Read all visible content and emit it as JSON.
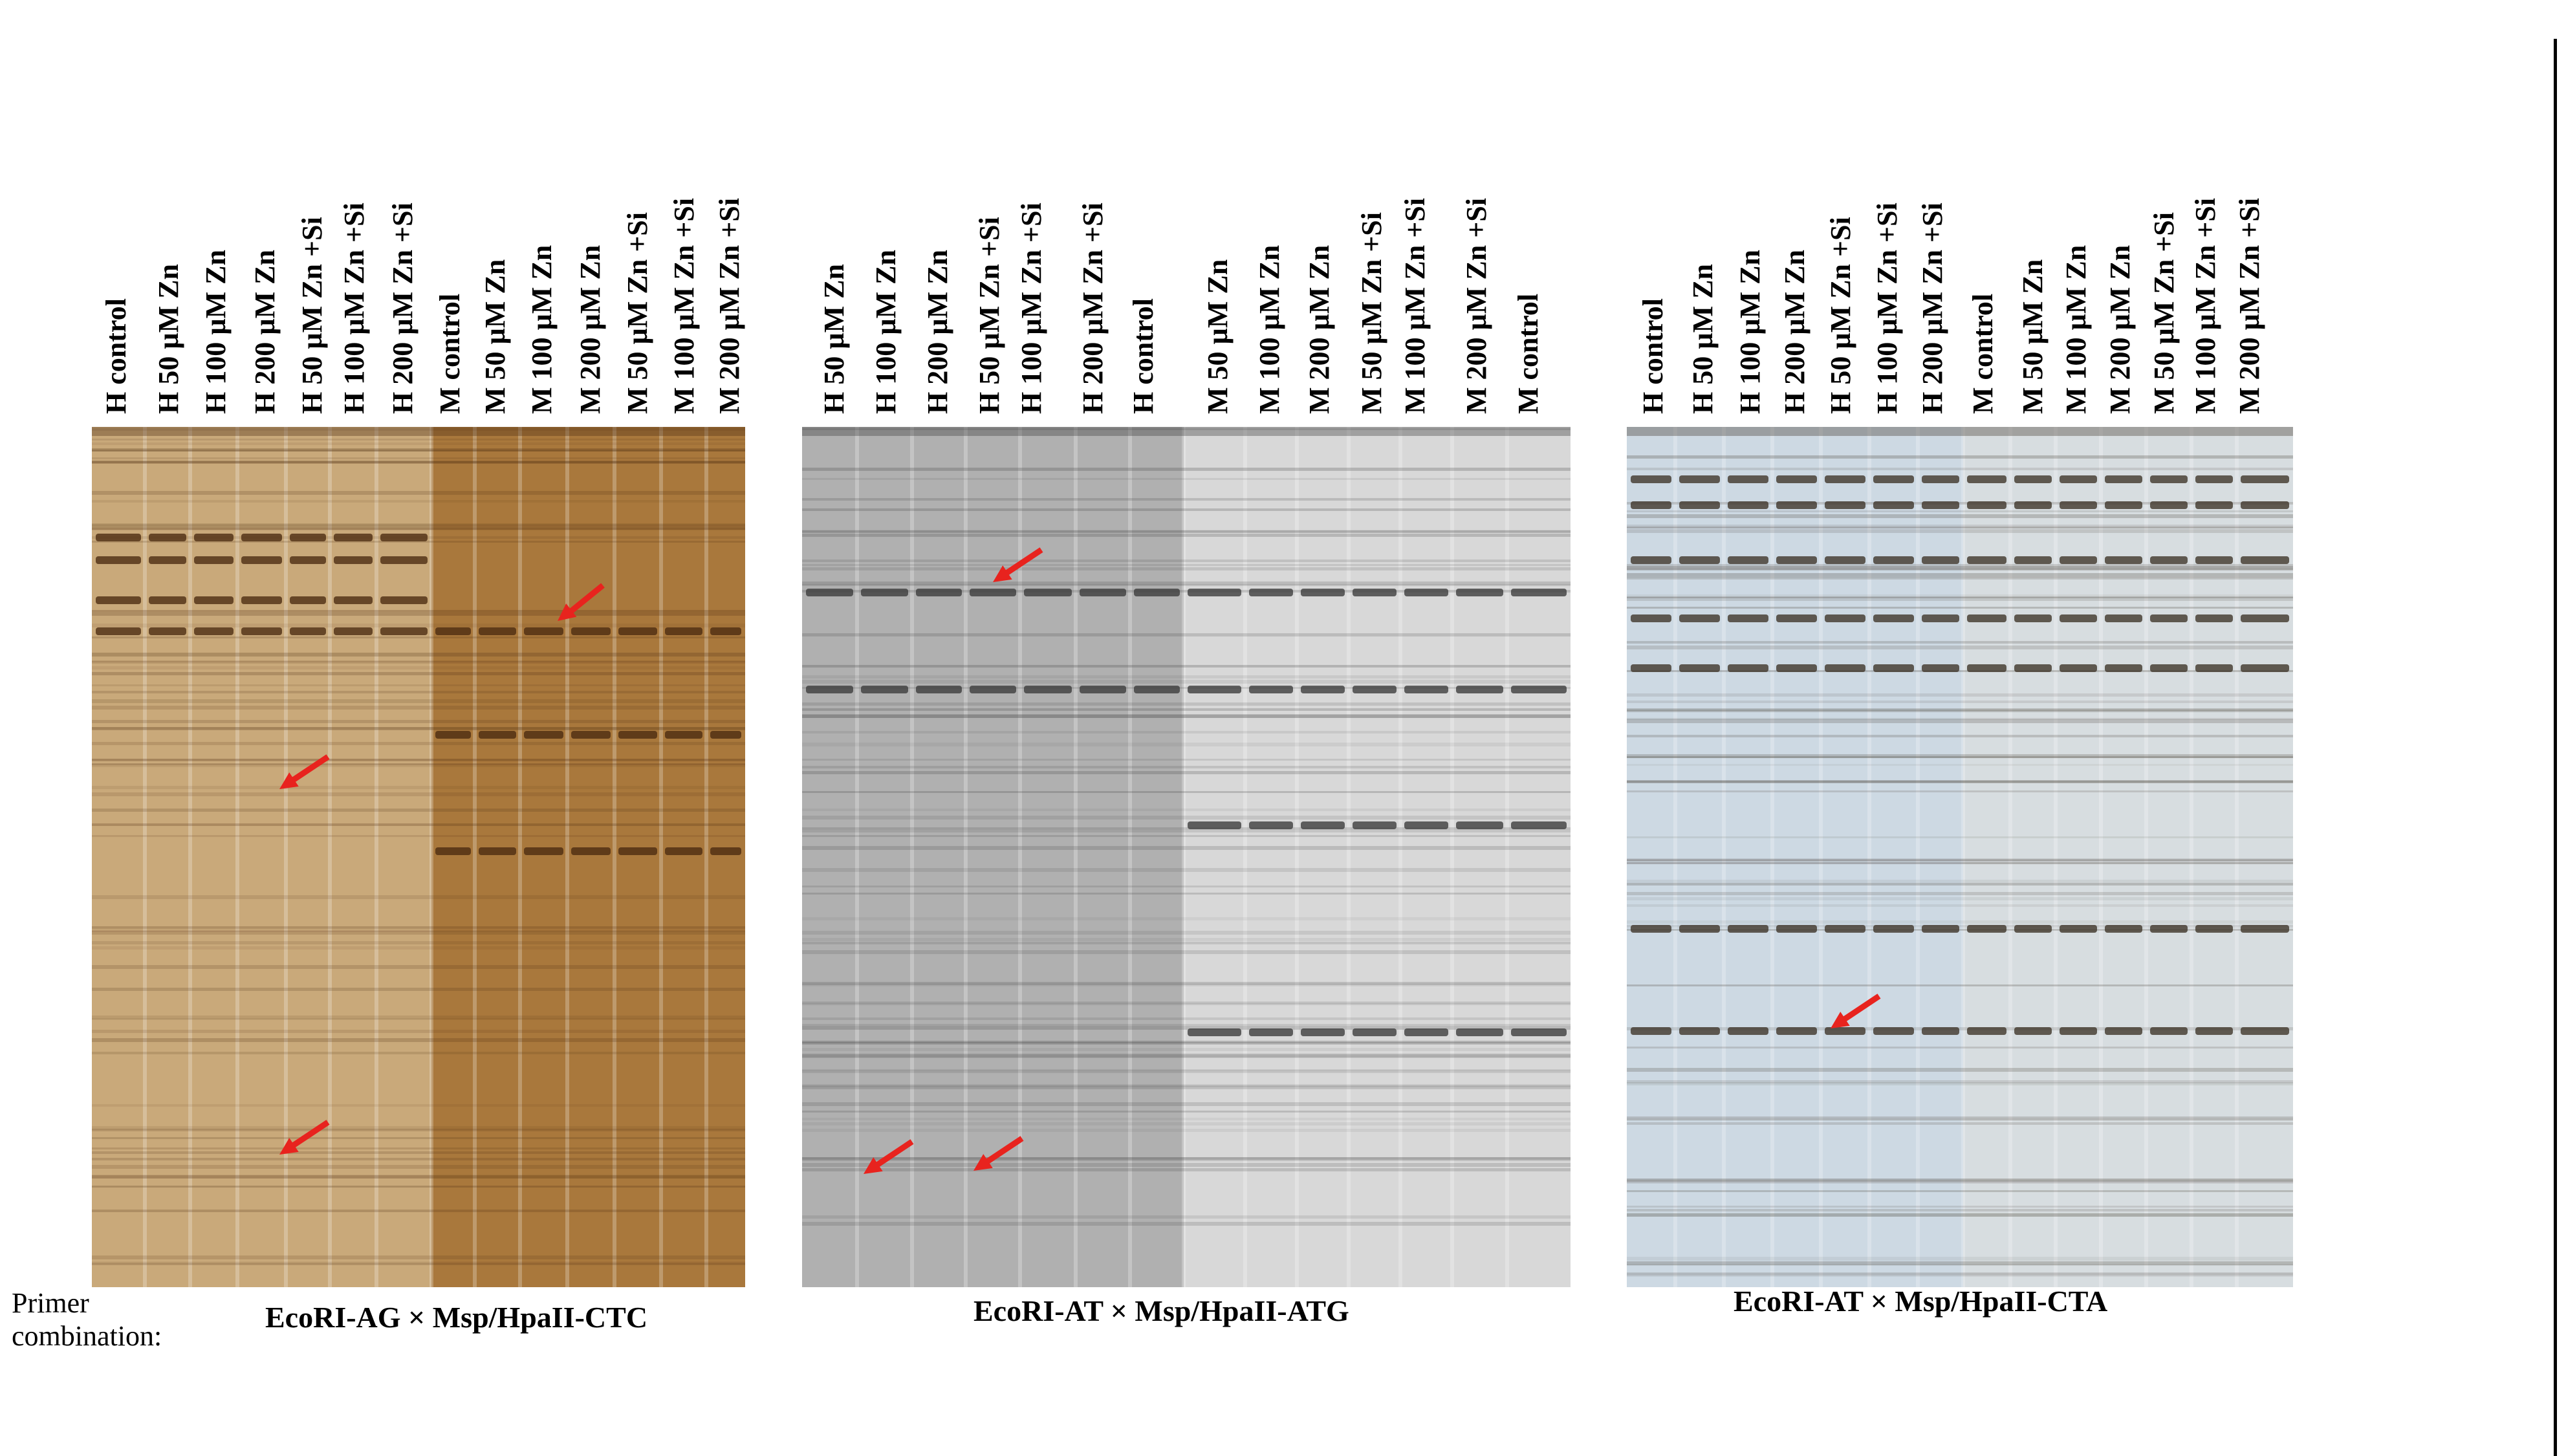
{
  "primer_prefix": [
    "Primer",
    "combination:"
  ],
  "panels": [
    {
      "title": "EcoRI-AG × Msp/HpaII-CTC",
      "lanes": [
        "H control",
        "H 50 µM Zn",
        "H 100 µM Zn",
        "H 200 µM Zn",
        "H 50 µM Zn +Si",
        "H 100 µM Zn +Si",
        "H 200 µM Zn +Si",
        "M control",
        "M 50 µM Zn",
        "M 100 µM Zn",
        "M 200 µM Zn",
        "M 50 µM Zn +Si",
        "M 100 µM Zn +Si",
        "M 200 µM Zn +Si"
      ],
      "colors": {
        "left": "#c9a97a",
        "right": "#a9783c",
        "band": "#4a2a10"
      }
    },
    {
      "title": "EcoRI-AT × Msp/HpaII-ATG",
      "lanes": [
        "H 50 µM Zn",
        "H 100 µM Zn",
        "H 200 µM Zn",
        "H 50 µM Zn +Si",
        "H 100 µM Zn +Si",
        "H 200 µM Zn +Si",
        "H control",
        "M 50 µM Zn",
        "M 100 µM Zn",
        "M 200 µM Zn",
        "M 50 µM Zn +Si",
        "M 100 µM Zn +Si",
        "M 200 µM Zn +Si",
        "M control"
      ],
      "colors": {
        "left": "#b0b0b0",
        "right": "#d8d8d8",
        "band": "#3a3a3a"
      }
    },
    {
      "title": "EcoRI-AT × Msp/HpaII-CTA",
      "lanes": [
        "H control",
        "H 50 µM Zn",
        "H 100 µM Zn",
        "H 200 µM Zn",
        "H 50 µM Zn +Si",
        "H 100 µM Zn +Si",
        "H 200 µM Zn +Si",
        "M control",
        "M 50 µM Zn",
        "M 100 µM Zn",
        "M 200 µM Zn",
        "M 50 µM Zn +Si",
        "M 100 µM Zn +Si",
        "M 200 µM Zn +Si"
      ],
      "colors": {
        "left": "#cdd9e3",
        "right": "#d7dde0",
        "band": "#3c3226"
      }
    }
  ],
  "arrow_color": "#e8231e"
}
